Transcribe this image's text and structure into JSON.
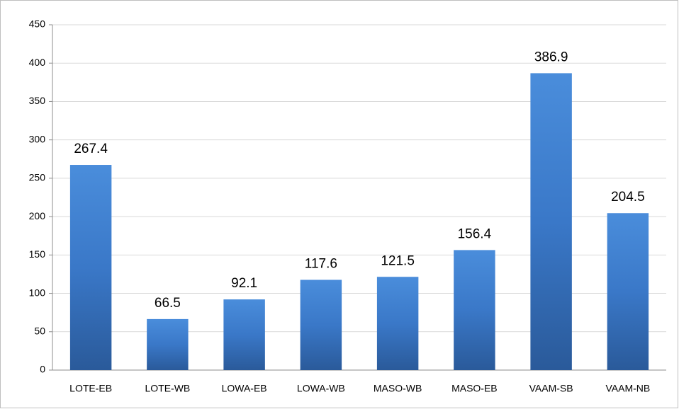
{
  "chart_data": {
    "type": "bar",
    "categories": [
      "LOTE-EB",
      "LOTE-WB",
      "LOWA-EB",
      "LOWA-WB",
      "MASO-WB",
      "MASO-EB",
      "VAAM-SB",
      "VAAM-NB"
    ],
    "values": [
      267.4,
      66.5,
      92.1,
      117.6,
      121.5,
      156.4,
      386.9,
      204.5
    ],
    "color": "#3a78c8",
    "ylim": [
      0,
      450
    ],
    "yticks": [
      0,
      50,
      100,
      150,
      200,
      250,
      300,
      350,
      400,
      450
    ],
    "grid": true
  }
}
